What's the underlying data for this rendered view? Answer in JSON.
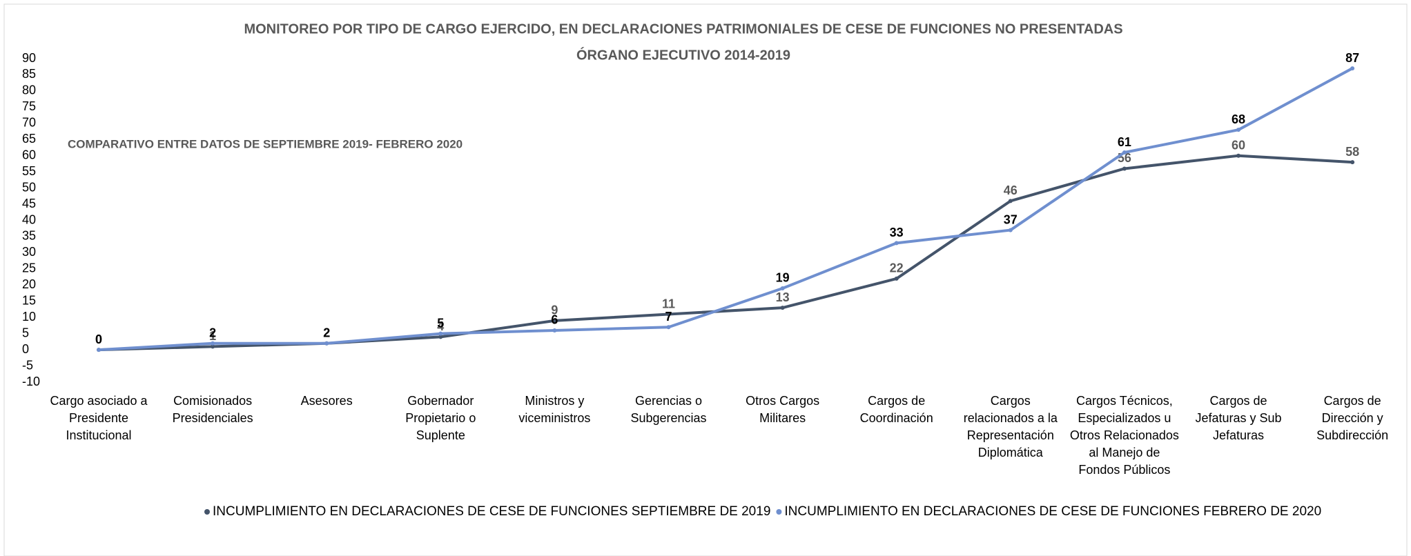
{
  "chart_data": {
    "type": "line",
    "title": "MONITOREO POR TIPO DE CARGO EJERCIDO,  EN  DECLARACIONES PATRIMONIALES  DE CESE DE FUNCIONES NO PRESENTADAS",
    "subtitle": "ÓRGANO EJECUTIVO 2014-2019",
    "annotation": "COMPARATIVO  ENTRE DATOS DE SEPTIEMBRE  2019- FEBRERO 2020",
    "categories": [
      "Cargo asociado a Presidente Institucional",
      "Comisionados Presidenciales",
      "Asesores",
      "Gobernador Propietario o Suplente",
      "Ministros y viceministros",
      "Gerencias o Subgerencias",
      "Otros Cargos Militares",
      "Cargos de Coordinación",
      "Cargos relacionados a la Representación Diplomática",
      "Cargos Técnicos, Especializados u Otros Relacionados al Manejo de Fondos Públicos",
      "Cargos de Jefaturas y Sub Jefaturas",
      "Cargos de Dirección y Subdirección"
    ],
    "series": [
      {
        "name": "INCUMPLIMIENTO EN DECLARACIONES DE CESE DE FUNCIONES SEPTIEMBRE DE 2019",
        "color": "#44546a",
        "values": [
          0,
          1,
          2,
          4,
          9,
          11,
          13,
          22,
          46,
          56,
          60,
          58
        ]
      },
      {
        "name": "INCUMPLIMIENTO EN DECLARACIONES DE CESE DE FUNCIONES FEBRERO DE 2020",
        "color": "#6f8fcf",
        "values": [
          0,
          2,
          2,
          5,
          6,
          7,
          19,
          33,
          37,
          61,
          68,
          87
        ]
      }
    ],
    "ylim": [
      -10,
      90
    ],
    "yticks": [
      -10,
      -5,
      0,
      5,
      10,
      15,
      20,
      25,
      30,
      35,
      40,
      45,
      50,
      55,
      60,
      65,
      70,
      75,
      80,
      85,
      90
    ],
    "grid": false,
    "legend": "bottom"
  }
}
